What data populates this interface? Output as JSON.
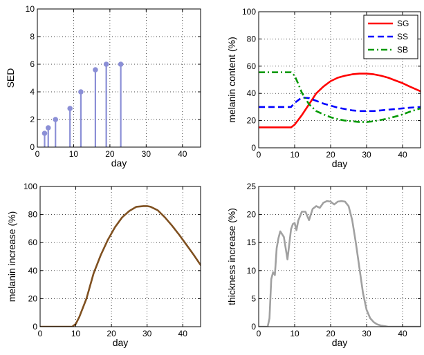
{
  "chart_data": [
    {
      "type": "stem",
      "title": "",
      "xlabel": "day",
      "ylabel": "SED",
      "xlim": [
        0,
        45
      ],
      "ylim": [
        0,
        10
      ],
      "xticks": [
        0,
        10,
        20,
        30,
        40
      ],
      "yticks": [
        0,
        2,
        4,
        6,
        8,
        10
      ],
      "grid": true,
      "color": "#8b8fd6",
      "series": [
        {
          "x": [
            2,
            3,
            5,
            9,
            12,
            16,
            19,
            23
          ],
          "y": [
            1.0,
            1.4,
            2.0,
            2.8,
            4.0,
            5.6,
            6.0,
            6.0
          ]
        }
      ]
    },
    {
      "type": "line",
      "title": "",
      "xlabel": "day",
      "ylabel": "melanin content (%)",
      "xlim": [
        0,
        45
      ],
      "ylim": [
        0,
        100
      ],
      "xticks": [
        0,
        10,
        20,
        30,
        40
      ],
      "yticks": [
        0,
        20,
        40,
        60,
        80,
        100
      ],
      "grid": true,
      "legend": "top-right",
      "series": [
        {
          "name": "SG",
          "color": "#ff0000",
          "style": "solid",
          "x": [
            0,
            9,
            10,
            12,
            14,
            16,
            18,
            20,
            22,
            24,
            26,
            28,
            30,
            32,
            34,
            36,
            38,
            40,
            42,
            45
          ],
          "y": [
            15,
            15,
            17,
            24,
            32,
            40,
            45,
            49,
            51.5,
            53,
            54,
            54.5,
            54.5,
            54,
            53,
            51.5,
            49.5,
            47.5,
            45,
            41.5
          ]
        },
        {
          "name": "SS",
          "color": "#0000ff",
          "style": "dashed",
          "x": [
            0,
            9,
            10,
            12,
            14,
            16,
            18,
            20,
            22,
            24,
            26,
            28,
            30,
            32,
            34,
            36,
            38,
            40,
            42,
            45
          ],
          "y": [
            30,
            30,
            33,
            37,
            36.5,
            34.5,
            32.5,
            31,
            29.5,
            28.5,
            27.5,
            27,
            27,
            27,
            27.5,
            28,
            28.5,
            29,
            29.5,
            30
          ]
        },
        {
          "name": "SB",
          "color": "#009900",
          "style": "dashdot",
          "x": [
            0,
            9,
            10,
            11,
            12,
            14,
            16,
            18,
            20,
            22,
            24,
            26,
            28,
            30,
            32,
            34,
            36,
            38,
            40,
            42,
            45
          ],
          "y": [
            55.5,
            55.5,
            53,
            47,
            40.5,
            32,
            27,
            24.5,
            22.5,
            21,
            20,
            19.5,
            19,
            19,
            19.5,
            20.5,
            21.5,
            23,
            24.5,
            26.5,
            29
          ]
        }
      ]
    },
    {
      "type": "line",
      "title": "",
      "xlabel": "day",
      "ylabel": "melanin increase (%)",
      "xlim": [
        0,
        45
      ],
      "ylim": [
        0,
        100
      ],
      "xticks": [
        0,
        10,
        20,
        30,
        40
      ],
      "yticks": [
        0,
        20,
        40,
        60,
        80,
        100
      ],
      "grid": true,
      "series": [
        {
          "color": "#7f5020",
          "style": "solid",
          "x": [
            0,
            9,
            10,
            11,
            13,
            15,
            17,
            19,
            21,
            23,
            25,
            27,
            29,
            30,
            31,
            33,
            35,
            37,
            39,
            41,
            43,
            45
          ],
          "y": [
            0,
            0,
            2,
            7,
            20,
            38,
            51,
            62,
            71,
            78,
            82.5,
            85.5,
            86,
            86,
            85.5,
            83,
            78,
            72,
            65.5,
            58.5,
            51.5,
            44
          ]
        }
      ]
    },
    {
      "type": "line",
      "title": "",
      "xlabel": "day",
      "ylabel": "thickness increase (%)",
      "xlim": [
        0,
        45
      ],
      "ylim": [
        0,
        25
      ],
      "xticks": [
        0,
        10,
        20,
        30,
        40
      ],
      "yticks": [
        0,
        5,
        10,
        15,
        20,
        25
      ],
      "grid": true,
      "series": [
        {
          "color": "#a0a0a0",
          "style": "solid",
          "x": [
            0,
            2.5,
            3,
            3.5,
            4,
            4.5,
            5,
            5.5,
            6,
            7,
            8,
            9,
            9.5,
            10,
            10.5,
            11,
            12,
            13,
            14,
            15,
            16,
            17,
            18,
            19,
            20,
            21,
            22,
            23,
            24,
            25,
            26,
            27,
            28,
            29,
            30,
            31,
            32,
            33,
            34,
            35,
            36,
            37,
            38,
            40,
            42,
            45
          ],
          "y": [
            0,
            0,
            1.5,
            8.5,
            9.7,
            9.2,
            14,
            15.8,
            17,
            16,
            12,
            17.4,
            18.3,
            18.5,
            17.2,
            18.9,
            20.5,
            20.5,
            19,
            21,
            21.5,
            21.2,
            22.1,
            22.4,
            22.3,
            21.8,
            22.3,
            22.4,
            22.3,
            21.5,
            19,
            15,
            10.5,
            6,
            3,
            1.5,
            0.8,
            0.4,
            0.2,
            0.1,
            0,
            0,
            0,
            0,
            0,
            0
          ]
        }
      ]
    }
  ]
}
